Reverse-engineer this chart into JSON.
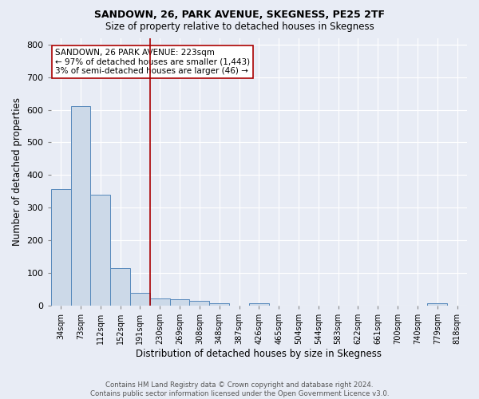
{
  "title1": "SANDOWN, 26, PARK AVENUE, SKEGNESS, PE25 2TF",
  "title2": "Size of property relative to detached houses in Skegness",
  "xlabel": "Distribution of detached houses by size in Skegness",
  "ylabel": "Number of detached properties",
  "footnote1": "Contains HM Land Registry data © Crown copyright and database right 2024.",
  "footnote2": "Contains public sector information licensed under the Open Government Licence v3.0.",
  "categories": [
    "34sqm",
    "73sqm",
    "112sqm",
    "152sqm",
    "191sqm",
    "230sqm",
    "269sqm",
    "308sqm",
    "348sqm",
    "387sqm",
    "426sqm",
    "465sqm",
    "504sqm",
    "544sqm",
    "583sqm",
    "622sqm",
    "661sqm",
    "700sqm",
    "740sqm",
    "779sqm",
    "818sqm"
  ],
  "values": [
    358,
    611,
    340,
    115,
    40,
    22,
    20,
    15,
    8,
    0,
    8,
    0,
    0,
    0,
    0,
    0,
    0,
    0,
    0,
    8,
    0
  ],
  "bar_color": "#ccd9e8",
  "bar_edge_color": "#5588bb",
  "vline_color": "#aa0000",
  "vline_x_idx": 4.5,
  "annotation_title": "SANDOWN, 26 PARK AVENUE: 223sqm",
  "annotation_line1": "← 97% of detached houses are smaller (1,443)",
  "annotation_line2": "3% of semi-detached houses are larger (46) →",
  "ylim": [
    0,
    820
  ],
  "yticks": [
    0,
    100,
    200,
    300,
    400,
    500,
    600,
    700,
    800
  ],
  "bg_color": "#e8ecf5",
  "plot_bg_color": "#e8ecf5",
  "grid_color": "#ffffff",
  "annotation_box_color": "#ffffff",
  "annotation_box_edge": "#aa0000"
}
